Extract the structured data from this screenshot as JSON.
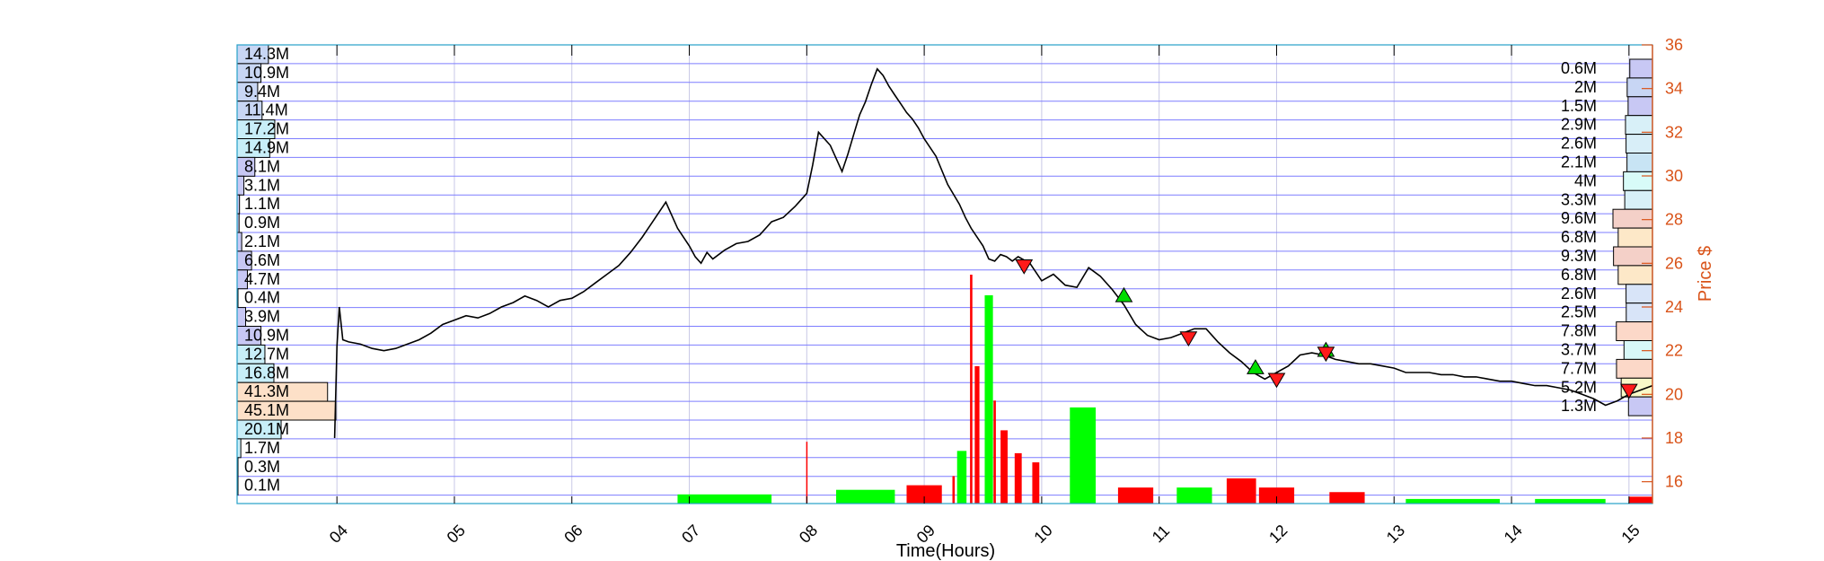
{
  "chart_data": {
    "type": "line",
    "title": "",
    "xlabel": "Time(Hours)",
    "ylabel_right": "Price $",
    "xlim": [
      3.15,
      15.2
    ],
    "ylim": [
      15,
      36
    ],
    "x_tick_labels": [
      "04",
      "05",
      "06",
      "07",
      "08",
      "09",
      "10",
      "11",
      "12",
      "13",
      "14",
      "15"
    ],
    "y_tick_labels": [
      "16",
      "18",
      "20",
      "22",
      "24",
      "26",
      "28",
      "30",
      "32",
      "34",
      "36"
    ],
    "colors": {
      "price_line": "#000000",
      "right_axis": "#D95319",
      "grid_h": "#7d7dff",
      "grid_v": "#c8c8e6",
      "vol_up": "#00ff00",
      "vol_down": "#ff0000",
      "buy_marker": "#00dd00",
      "sell_marker": "#ff1a1a"
    },
    "price_series": {
      "x": [
        3.98,
        4.0,
        4.02,
        4.05,
        4.1,
        4.2,
        4.3,
        4.4,
        4.5,
        4.6,
        4.7,
        4.8,
        4.9,
        5.0,
        5.1,
        5.2,
        5.3,
        5.4,
        5.5,
        5.6,
        5.7,
        5.8,
        5.9,
        6.0,
        6.1,
        6.2,
        6.3,
        6.4,
        6.5,
        6.6,
        6.7,
        6.8,
        6.9,
        7.0,
        7.05,
        7.1,
        7.15,
        7.2,
        7.3,
        7.4,
        7.5,
        7.6,
        7.7,
        7.8,
        7.9,
        8.0,
        8.05,
        8.1,
        8.2,
        8.3,
        8.35,
        8.4,
        8.45,
        8.5,
        8.55,
        8.6,
        8.65,
        8.7,
        8.75,
        8.8,
        8.85,
        8.9,
        8.95,
        9.0,
        9.1,
        9.2,
        9.3,
        9.35,
        9.4,
        9.5,
        9.55,
        9.6,
        9.65,
        9.7,
        9.75,
        9.8,
        9.9,
        10.0,
        10.1,
        10.2,
        10.3,
        10.4,
        10.5,
        10.6,
        10.7,
        10.8,
        10.9,
        11.0,
        11.1,
        11.2,
        11.3,
        11.4,
        11.5,
        11.6,
        11.7,
        11.8,
        11.9,
        12.0,
        12.1,
        12.2,
        12.3,
        12.4,
        12.5,
        12.6,
        12.7,
        12.8,
        12.9,
        13.0,
        13.1,
        13.2,
        13.3,
        13.4,
        13.5,
        13.6,
        13.7,
        13.8,
        13.9,
        14.0,
        14.1,
        14.2,
        14.3,
        14.4,
        14.5,
        14.6,
        14.7,
        14.8,
        14.9,
        15.0,
        15.1,
        15.2
      ],
      "y": [
        18.0,
        22.2,
        24.0,
        22.5,
        22.4,
        22.3,
        22.1,
        22.0,
        22.1,
        22.3,
        22.5,
        22.8,
        23.2,
        23.4,
        23.6,
        23.5,
        23.7,
        24.0,
        24.2,
        24.5,
        24.3,
        24.0,
        24.3,
        24.4,
        24.7,
        25.1,
        25.5,
        25.9,
        26.5,
        27.2,
        28.0,
        28.8,
        27.6,
        26.8,
        26.3,
        26.0,
        26.5,
        26.2,
        26.6,
        26.9,
        27.0,
        27.3,
        27.9,
        28.1,
        28.6,
        29.2,
        30.5,
        32.0,
        31.4,
        30.2,
        31.0,
        31.9,
        32.8,
        33.4,
        34.2,
        34.9,
        34.6,
        34.1,
        33.7,
        33.3,
        32.9,
        32.6,
        32.2,
        31.7,
        30.9,
        29.6,
        28.7,
        28.1,
        27.6,
        26.8,
        26.2,
        26.1,
        26.4,
        26.3,
        26.1,
        26.3,
        26.0,
        25.2,
        25.5,
        25.0,
        24.9,
        25.8,
        25.4,
        24.8,
        24.1,
        23.2,
        22.7,
        22.5,
        22.6,
        22.8,
        23.0,
        23.0,
        22.4,
        21.9,
        21.5,
        21.0,
        20.7,
        21.0,
        21.3,
        21.8,
        21.9,
        21.8,
        21.6,
        21.5,
        21.4,
        21.4,
        21.3,
        21.2,
        21.0,
        21.0,
        21.0,
        20.9,
        20.9,
        20.8,
        20.8,
        20.7,
        20.6,
        20.6,
        20.5,
        20.4,
        20.4,
        20.3,
        20.2,
        20.0,
        19.8,
        19.5,
        19.7,
        20.0,
        20.2,
        20.4
      ]
    },
    "trade_markers": [
      {
        "type": "sell",
        "x": 9.85,
        "y": 25.9
      },
      {
        "type": "buy",
        "x": 10.7,
        "y": 24.5
      },
      {
        "type": "sell",
        "x": 11.25,
        "y": 22.6
      },
      {
        "type": "buy",
        "x": 11.82,
        "y": 21.2
      },
      {
        "type": "sell",
        "x": 12.0,
        "y": 20.7
      },
      {
        "type": "buy",
        "x": 12.42,
        "y": 22.0
      },
      {
        "type": "sell",
        "x": 12.42,
        "y": 21.9
      },
      {
        "type": "sell",
        "x": 15.0,
        "y": 20.2
      }
    ],
    "volume_series": {
      "note": "relative volume (0-1) per bar",
      "bars": [
        {
          "x": 9.32,
          "v": 0.23,
          "dir": "up",
          "w": 0.08
        },
        {
          "x": 9.4,
          "v": 1.0,
          "dir": "down",
          "w": 0.02
        },
        {
          "x": 9.45,
          "v": 0.6,
          "dir": "down",
          "w": 0.04
        },
        {
          "x": 9.55,
          "v": 0.91,
          "dir": "up",
          "w": 0.07
        },
        {
          "x": 9.68,
          "v": 0.32,
          "dir": "down",
          "w": 0.06
        },
        {
          "x": 9.8,
          "v": 0.22,
          "dir": "down",
          "w": 0.06
        },
        {
          "x": 9.95,
          "v": 0.18,
          "dir": "down",
          "w": 0.06
        },
        {
          "x": 10.35,
          "v": 0.42,
          "dir": "up",
          "w": 0.22
        },
        {
          "x": 8.5,
          "v": 0.06,
          "dir": "up",
          "w": 0.5
        },
        {
          "x": 9.0,
          "v": 0.08,
          "dir": "down",
          "w": 0.3
        },
        {
          "x": 10.8,
          "v": 0.07,
          "dir": "down",
          "w": 0.3
        },
        {
          "x": 11.3,
          "v": 0.07,
          "dir": "up",
          "w": 0.3
        },
        {
          "x": 11.7,
          "v": 0.11,
          "dir": "down",
          "w": 0.25
        },
        {
          "x": 12.0,
          "v": 0.07,
          "dir": "down",
          "w": 0.3
        },
        {
          "x": 12.6,
          "v": 0.05,
          "dir": "down",
          "w": 0.3
        },
        {
          "x": 7.3,
          "v": 0.04,
          "dir": "up",
          "w": 0.8
        },
        {
          "x": 13.5,
          "v": 0.02,
          "dir": "up",
          "w": 0.8
        },
        {
          "x": 14.5,
          "v": 0.02,
          "dir": "up",
          "w": 0.6
        },
        {
          "x": 15.1,
          "v": 0.03,
          "dir": "down",
          "w": 0.2
        },
        {
          "x": 8.0,
          "v": 0.27,
          "dir": "down",
          "w": 0.01
        },
        {
          "x": 9.25,
          "v": 0.12,
          "dir": "down",
          "w": 0.02
        },
        {
          "x": 9.6,
          "v": 0.45,
          "dir": "down",
          "w": 0.02
        }
      ]
    },
    "volume_profile_left": {
      "labels": [
        "14.3M",
        "10.9M",
        "9.4M",
        "11.4M",
        "17.2M",
        "14.9M",
        "8.1M",
        "3.1M",
        "1.1M",
        "0.9M",
        "2.1M",
        "6.6M",
        "4.7M",
        "0.4M",
        "3.9M",
        "10.9M",
        "12.7M",
        "16.8M",
        "41.3M",
        "45.1M",
        "20.1M",
        "1.7M",
        "0.3M",
        "0.1M"
      ],
      "values_M": [
        14.3,
        10.9,
        9.4,
        11.4,
        17.2,
        14.9,
        8.1,
        3.1,
        1.1,
        0.9,
        2.1,
        6.6,
        4.7,
        0.4,
        3.9,
        10.9,
        12.7,
        16.8,
        41.3,
        45.1,
        20.1,
        1.7,
        0.3,
        0.1
      ],
      "colors": [
        "#c8d6f4",
        "#c8d6f4",
        "#c8d6f4",
        "#c8d6f4",
        "#c8eef8",
        "#c8eef8",
        "#c8c8f4",
        "#c8c8f4",
        "#c8c8f4",
        "#c8c8f4",
        "#c8c8f4",
        "#c8c8f4",
        "#c8c8f4",
        "#c8c8f4",
        "#c8c8f4",
        "#c8c8f4",
        "#c8eef8",
        "#c8eef8",
        "#fde0c8",
        "#fde0c8",
        "#c8eef8",
        "#c8eef8",
        "#c8eef8",
        "#c8eef8"
      ]
    },
    "volume_profile_right": {
      "labels": [
        "0.6M",
        "2M",
        "1.5M",
        "2.9M",
        "2.6M",
        "2.1M",
        "4M",
        "3.3M",
        "9.6M",
        "6.8M",
        "9.3M",
        "6.8M",
        "2.6M",
        "2.5M",
        "7.8M",
        "3.7M",
        "7.7M",
        "5.2M",
        "1.3M"
      ],
      "values_M": [
        0.6,
        2.0,
        1.5,
        2.9,
        2.6,
        2.1,
        4.0,
        3.3,
        9.6,
        6.8,
        9.3,
        6.8,
        2.6,
        2.5,
        7.8,
        3.7,
        7.7,
        5.2,
        1.3
      ],
      "colors": [
        "#c8c8f4",
        "#c8d6f4",
        "#c8c8f4",
        "#d8f0f8",
        "#d8eef8",
        "#c8e4f4",
        "#d8fbf8",
        "#d8f0f8",
        "#f4d0c8",
        "#fde8c8",
        "#f4d0c8",
        "#fde8c8",
        "#d8e4f8",
        "#d8e4f8",
        "#fcd8c8",
        "#d8f8f8",
        "#fcd8c8",
        "#f8f8c8",
        "#c8c8f4"
      ]
    }
  }
}
